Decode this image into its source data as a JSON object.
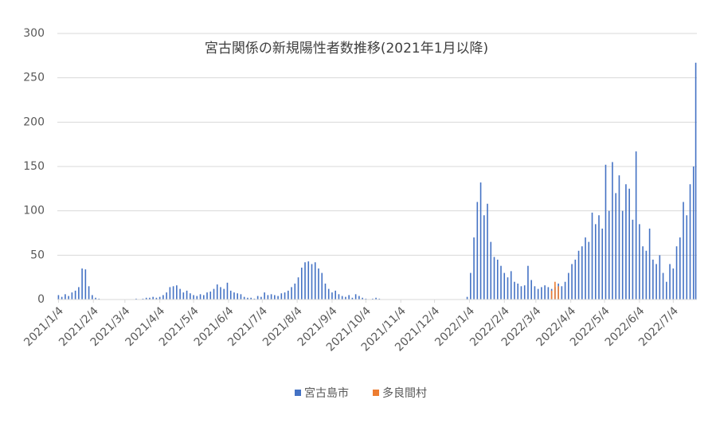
{
  "chart_data": {
    "type": "bar",
    "title": "宮古関係の新規陽性者数推移(2021年1月以降)",
    "xlim": [
      -1,
      567
    ],
    "xticks": [
      {
        "value": 0,
        "label": "2021/1/4"
      },
      {
        "value": 31,
        "label": "2021/2/4"
      },
      {
        "value": 59,
        "label": "2021/3/4"
      },
      {
        "value": 90,
        "label": "2021/4/4"
      },
      {
        "value": 120,
        "label": "2021/5/4"
      },
      {
        "value": 151,
        "label": "2021/6/4"
      },
      {
        "value": 181,
        "label": "2021/7/4"
      },
      {
        "value": 212,
        "label": "2021/8/4"
      },
      {
        "value": 243,
        "label": "2021/9/4"
      },
      {
        "value": 273,
        "label": "2021/10/4"
      },
      {
        "value": 304,
        "label": "2021/11/4"
      },
      {
        "value": 334,
        "label": "2021/12/4"
      },
      {
        "value": 365,
        "label": "2022/1/4"
      },
      {
        "value": 396,
        "label": "2022/2/4"
      },
      {
        "value": 424,
        "label": "2022/3/4"
      },
      {
        "value": 455,
        "label": "2022/4/4"
      },
      {
        "value": 485,
        "label": "2022/5/4"
      },
      {
        "value": 516,
        "label": "2022/6/4"
      },
      {
        "value": 546,
        "label": "2022/7/4"
      }
    ],
    "ylim": [
      0,
      300
    ],
    "yticks": [
      0,
      50,
      100,
      150,
      200,
      250,
      300
    ],
    "grid": true,
    "legend": "bottom",
    "series": [
      {
        "name": "宮古島市",
        "color": "#4472c4",
        "x": [
          0,
          3,
          6,
          9,
          12,
          15,
          18,
          21,
          24,
          27,
          30,
          33,
          36,
          39,
          42,
          45,
          48,
          51,
          54,
          57,
          60,
          63,
          66,
          69,
          72,
          75,
          78,
          81,
          84,
          87,
          90,
          93,
          96,
          99,
          102,
          105,
          108,
          111,
          114,
          117,
          120,
          123,
          126,
          129,
          132,
          135,
          138,
          141,
          144,
          147,
          150,
          153,
          156,
          159,
          162,
          165,
          168,
          171,
          174,
          177,
          180,
          183,
          186,
          189,
          192,
          195,
          198,
          201,
          204,
          207,
          210,
          213,
          216,
          219,
          222,
          225,
          228,
          231,
          234,
          237,
          240,
          243,
          246,
          249,
          252,
          255,
          258,
          261,
          264,
          267,
          270,
          273,
          276,
          279,
          282,
          285,
          288,
          291,
          294,
          297,
          300,
          303,
          306,
          309,
          312,
          315,
          318,
          321,
          324,
          327,
          330,
          333,
          336,
          339,
          342,
          345,
          348,
          351,
          354,
          357,
          360,
          363,
          366,
          369,
          372,
          375,
          378,
          381,
          384,
          387,
          390,
          393,
          396,
          399,
          402,
          405,
          408,
          411,
          414,
          417,
          420,
          423,
          426,
          429,
          432,
          435,
          438,
          441,
          444,
          447,
          450,
          453,
          456,
          459,
          462,
          465,
          468,
          471,
          474,
          477,
          480,
          483,
          486,
          489,
          492,
          495,
          498,
          501,
          504,
          507,
          510,
          513,
          516,
          519,
          522,
          525,
          528,
          531,
          534,
          537,
          540,
          543,
          546,
          549,
          552,
          555,
          558,
          561,
          564,
          566
        ],
        "values": [
          5,
          3,
          6,
          4,
          8,
          10,
          14,
          35,
          34,
          15,
          5,
          2,
          1,
          0,
          0,
          0,
          0,
          0,
          0,
          0,
          0,
          0,
          0,
          1,
          0,
          1,
          2,
          2,
          3,
          2,
          3,
          5,
          8,
          14,
          15,
          16,
          12,
          8,
          10,
          7,
          5,
          4,
          6,
          5,
          8,
          9,
          12,
          17,
          14,
          12,
          19,
          10,
          8,
          7,
          6,
          3,
          2,
          2,
          1,
          4,
          3,
          8,
          5,
          6,
          5,
          4,
          7,
          8,
          10,
          14,
          18,
          25,
          36,
          42,
          43,
          40,
          42,
          35,
          30,
          18,
          12,
          8,
          10,
          6,
          4,
          3,
          5,
          2,
          6,
          4,
          2,
          1,
          0,
          1,
          2,
          1,
          0,
          0,
          0,
          0,
          0,
          0,
          0,
          0,
          0,
          0,
          0,
          0,
          0,
          0,
          0,
          0,
          0,
          0,
          0,
          0,
          0,
          0,
          0,
          0,
          0,
          3,
          30,
          70,
          110,
          132,
          95,
          108,
          65,
          48,
          45,
          38,
          30,
          25,
          32,
          20,
          18,
          15,
          16,
          38,
          22,
          15,
          12,
          14,
          16,
          14,
          12,
          14,
          18,
          15,
          20,
          30,
          40,
          45,
          55,
          60,
          70,
          65,
          98,
          85,
          95,
          80,
          152,
          100,
          155,
          120,
          140,
          100,
          130,
          125,
          90,
          167,
          85,
          60,
          55,
          80,
          45,
          40,
          50,
          30,
          20,
          40,
          35,
          60,
          70,
          110,
          95,
          130,
          150,
          267
        ]
      },
      {
        "name": "多良間村",
        "color": "#ed7d31",
        "x": [
          438,
          441,
          444
        ],
        "values": [
          10,
          20,
          15
        ]
      }
    ]
  }
}
